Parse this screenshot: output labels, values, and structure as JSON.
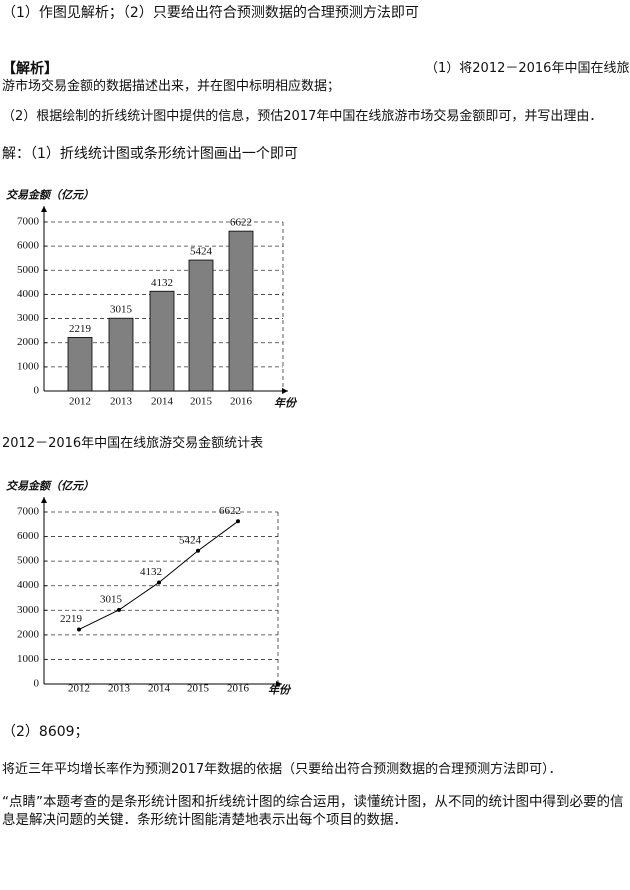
{
  "answer": "（1）作图见解析；（2）只要给出符合预测数据的合理预测方法即可",
  "analysis_label": "【解析】",
  "question1": [
    "（1）将2012－2016年中国在线旅",
    "游市场交易金额的数据描述出来，并在图中标明相应数据；"
  ],
  "question2": "（2）根据绘制的折线统计图中提供的信息，预估2017年中国在线旅游市场交易金额即可，并写出理由．",
  "solution1": "解：（1）折线统计图或条形统计图画出一个即可",
  "caption": "2012－2016年中国在线旅游交易金额统计表",
  "solution2": "（2）8609；",
  "reason": "将近三年平均增长率作为预测2017年数据的依据（只要给出符合预测数据的合理预测方法即可）．",
  "comment": "“点睛”本题考查的是条形统计图和折线统计图的综合运用，读懂统计图，从不同的统计图中得到必要的信息是解决问题的关键．条形统计图能清楚地表示出每个项目的数据．",
  "chart_data": [
    {
      "type": "bar",
      "y_label": "交易金额（亿元）",
      "x_label": "年份",
      "categories": [
        "2012",
        "2013",
        "2014",
        "2015",
        "2016"
      ],
      "values": [
        2219,
        3015,
        4132,
        5424,
        6622
      ],
      "color": "#808080",
      "ylim": [
        0,
        7000
      ],
      "yticks": [
        0,
        1000,
        2000,
        3000,
        4000,
        5000,
        6000,
        7000
      ],
      "grid": true
    },
    {
      "type": "line",
      "y_label": "交易金额（亿元）",
      "x_label": "年份",
      "categories": [
        "2012",
        "2013",
        "2014",
        "2015",
        "2016"
      ],
      "values": [
        2219,
        3015,
        4132,
        5424,
        6622
      ],
      "color": "#000000",
      "ylim": [
        0,
        7000
      ],
      "yticks": [
        0,
        1000,
        2000,
        3000,
        4000,
        5000,
        6000,
        7000
      ],
      "grid": true
    }
  ]
}
